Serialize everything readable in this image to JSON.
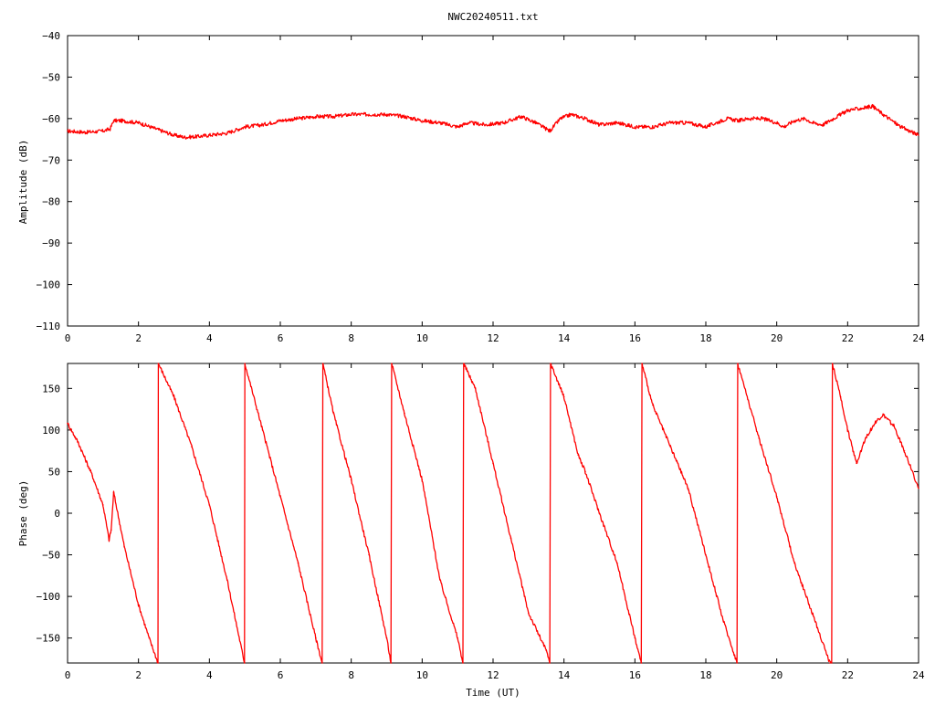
{
  "title": "NWC20240511.txt",
  "colors": {
    "series": "#ff0000",
    "axes": "#000000",
    "background": "#ffffff"
  },
  "chart_data": [
    {
      "type": "line",
      "title": "NWC20240511.txt",
      "xlabel": "",
      "ylabel": "Amplitude (dB)",
      "xlim": [
        0,
        24
      ],
      "ylim": [
        -110,
        -40
      ],
      "xticks": [
        0,
        2,
        4,
        6,
        8,
        10,
        12,
        14,
        16,
        18,
        20,
        22,
        24
      ],
      "yticks": [
        -110,
        -100,
        -90,
        -80,
        -70,
        -60,
        -50,
        -40
      ],
      "xtick_labels": [
        "0",
        "2",
        "4",
        "6",
        "8",
        "10",
        "12",
        "14",
        "16",
        "18",
        "20",
        "22",
        "24"
      ],
      "ytick_labels": [
        "−110",
        "−100",
        "−90",
        "−80",
        "−70",
        "−60",
        "−50",
        "−40"
      ],
      "grid": false,
      "legend": "none",
      "series": [
        {
          "x": [
            0,
            0.5,
            1.0,
            1.2,
            1.3,
            1.5,
            2.0,
            2.5,
            3.0,
            3.3,
            3.7,
            4.0,
            4.5,
            5.0,
            5.5,
            6.0,
            7.0,
            7.5,
            8.0,
            8.5,
            9.0,
            9.5,
            10.0,
            10.5,
            11.0,
            11.3,
            11.8,
            12.3,
            12.8,
            13.2,
            13.6,
            13.9,
            14.2,
            14.6,
            15.0,
            15.5,
            16.0,
            16.5,
            17.0,
            17.5,
            18.0,
            18.3,
            18.6,
            18.9,
            19.2,
            19.6,
            20.0,
            20.2,
            20.5,
            20.8,
            21.0,
            21.3,
            21.6,
            22.0,
            22.4,
            22.7,
            23.0,
            23.5,
            24.0
          ],
          "values": [
            -63,
            -63.3,
            -63,
            -62.5,
            -60.5,
            -60.5,
            -61,
            -62.5,
            -64,
            -64.5,
            -64.3,
            -64,
            -63.5,
            -62,
            -61.5,
            -60.5,
            -59.5,
            -59.5,
            -59,
            -59,
            -59,
            -59.5,
            -60.5,
            -61,
            -62,
            -61,
            -61.5,
            -61,
            -59.5,
            -61,
            -63,
            -60,
            -59,
            -60,
            -61.5,
            -61,
            -62,
            -62,
            -61,
            -61,
            -62,
            -61,
            -60,
            -60.5,
            -60,
            -60,
            -61,
            -62,
            -60.5,
            -60,
            -61,
            -61.5,
            -60,
            -58,
            -57.5,
            -57,
            -59,
            -62,
            -64
          ]
        }
      ]
    },
    {
      "type": "line",
      "title": "",
      "xlabel": "Time (UT)",
      "ylabel": "Phase (deg)",
      "xlim": [
        0,
        24
      ],
      "ylim": [
        -180,
        180
      ],
      "xticks": [
        0,
        2,
        4,
        6,
        8,
        10,
        12,
        14,
        16,
        18,
        20,
        22,
        24
      ],
      "yticks": [
        -150,
        -100,
        -50,
        0,
        50,
        100,
        150
      ],
      "xtick_labels": [
        "0",
        "2",
        "4",
        "6",
        "8",
        "10",
        "12",
        "14",
        "16",
        "18",
        "20",
        "22",
        "24"
      ],
      "ytick_labels": [
        "−150",
        "−100",
        "−50",
        "0",
        "50",
        "100",
        "150"
      ],
      "grid": false,
      "legend": "none",
      "series": [
        {
          "x": [
            0,
            0.3,
            0.7,
            1.0,
            1.17,
            1.23,
            1.3,
            1.6,
            2.0,
            2.3,
            2.55,
            2.56,
            3.0,
            3.5,
            4.0,
            4.5,
            4.99,
            5.0,
            5.5,
            6.0,
            6.5,
            7.0,
            7.18,
            7.2,
            7.5,
            8.0,
            8.5,
            9.0,
            9.12,
            9.14,
            9.5,
            10.0,
            10.5,
            11.0,
            11.15,
            11.17,
            11.5,
            12.0,
            12.5,
            13.0,
            13.5,
            13.6,
            13.62,
            14.0,
            14.4,
            14.6,
            15.0,
            15.5,
            16.0,
            16.18,
            16.2,
            16.5,
            17.0,
            17.5,
            18.0,
            18.5,
            18.88,
            18.9,
            19.5,
            20.0,
            20.5,
            21.0,
            21.5,
            21.55,
            21.57,
            21.8,
            22.0,
            22.25,
            22.5,
            22.8,
            23.0,
            23.3,
            23.6,
            24.0
          ],
          "values": [
            108,
            85,
            45,
            10,
            -32,
            -20,
            25,
            -40,
            -110,
            -150,
            -180,
            180,
            140,
            80,
            10,
            -80,
            -180,
            180,
            100,
            20,
            -60,
            -150,
            -180,
            180,
            120,
            40,
            -50,
            -150,
            -180,
            180,
            120,
            40,
            -80,
            -150,
            -180,
            180,
            150,
            60,
            -30,
            -120,
            -165,
            -180,
            180,
            140,
            70,
            50,
            0,
            -60,
            -150,
            -180,
            180,
            130,
            80,
            30,
            -50,
            -130,
            -180,
            180,
            90,
            20,
            -60,
            -120,
            -180,
            -180,
            180,
            140,
            100,
            60,
            90,
            110,
            118,
            105,
            75,
            30
          ]
        }
      ]
    }
  ]
}
